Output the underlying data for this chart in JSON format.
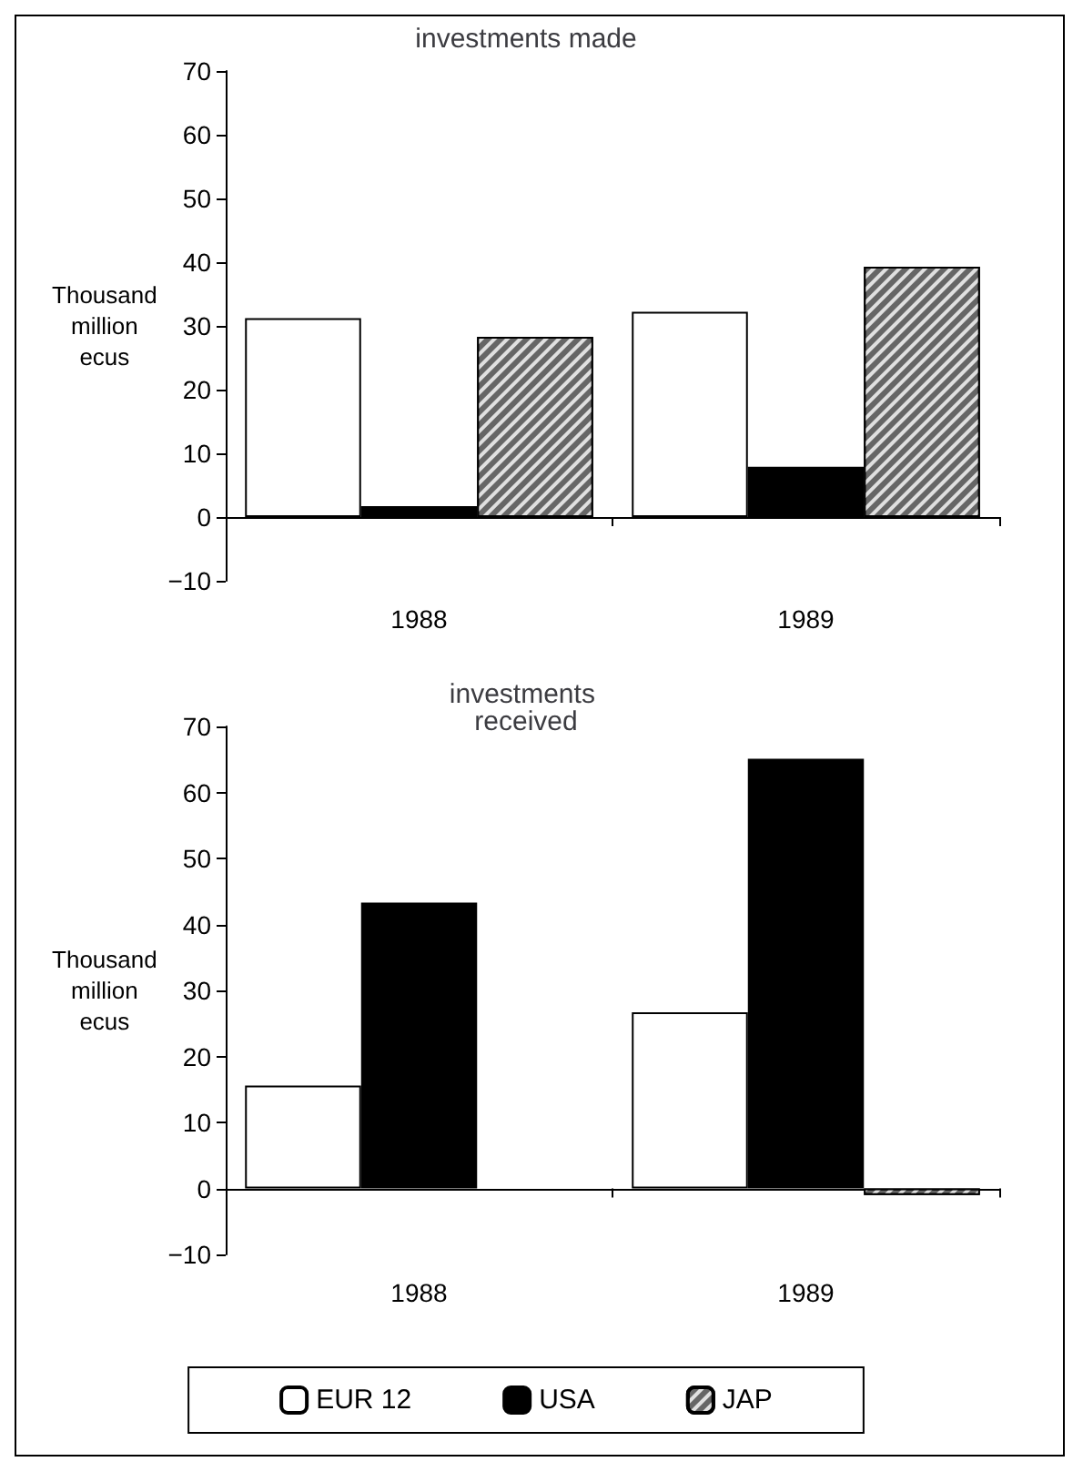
{
  "chart_data": [
    {
      "type": "bar",
      "title": "investments made",
      "ylabel": "Thousand million ecus",
      "categories": [
        "1988",
        "1989"
      ],
      "series": [
        {
          "color": "#ffffff",
          "values": [
            31.2,
            32.2
          ]
        },
        {
          "color": "#000000",
          "values": [
            1.7,
            7.9
          ]
        },
        {
          "color": "#666666",
          "values": [
            28.3,
            39.3
          ]
        }
      ],
      "ylim": [
        -10,
        70
      ],
      "yticks": [
        -10,
        0,
        10,
        20,
        30,
        40,
        50,
        60,
        70
      ]
    },
    {
      "type": "bar",
      "title": "investments received",
      "ylabel": "Thousand million ecus",
      "categories": [
        "1988",
        "1989"
      ],
      "series": [
        {
          "name": "EUR 12",
          "color": "#ffffff",
          "values": [
            15.6,
            26.7
          ]
        },
        {
          "name": "USA",
          "color": "#000000",
          "values": [
            43.3,
            65.1
          ]
        },
        {
          "name": "JAP",
          "color": "#666666",
          "values": [
            null,
            -1
          ]
        }
      ],
      "ylim": [
        -10,
        70
      ],
      "yticks": [
        -10,
        0,
        10,
        20,
        30,
        40,
        50,
        60,
        70
      ],
      "legend": "bottom"
    }
  ]
}
